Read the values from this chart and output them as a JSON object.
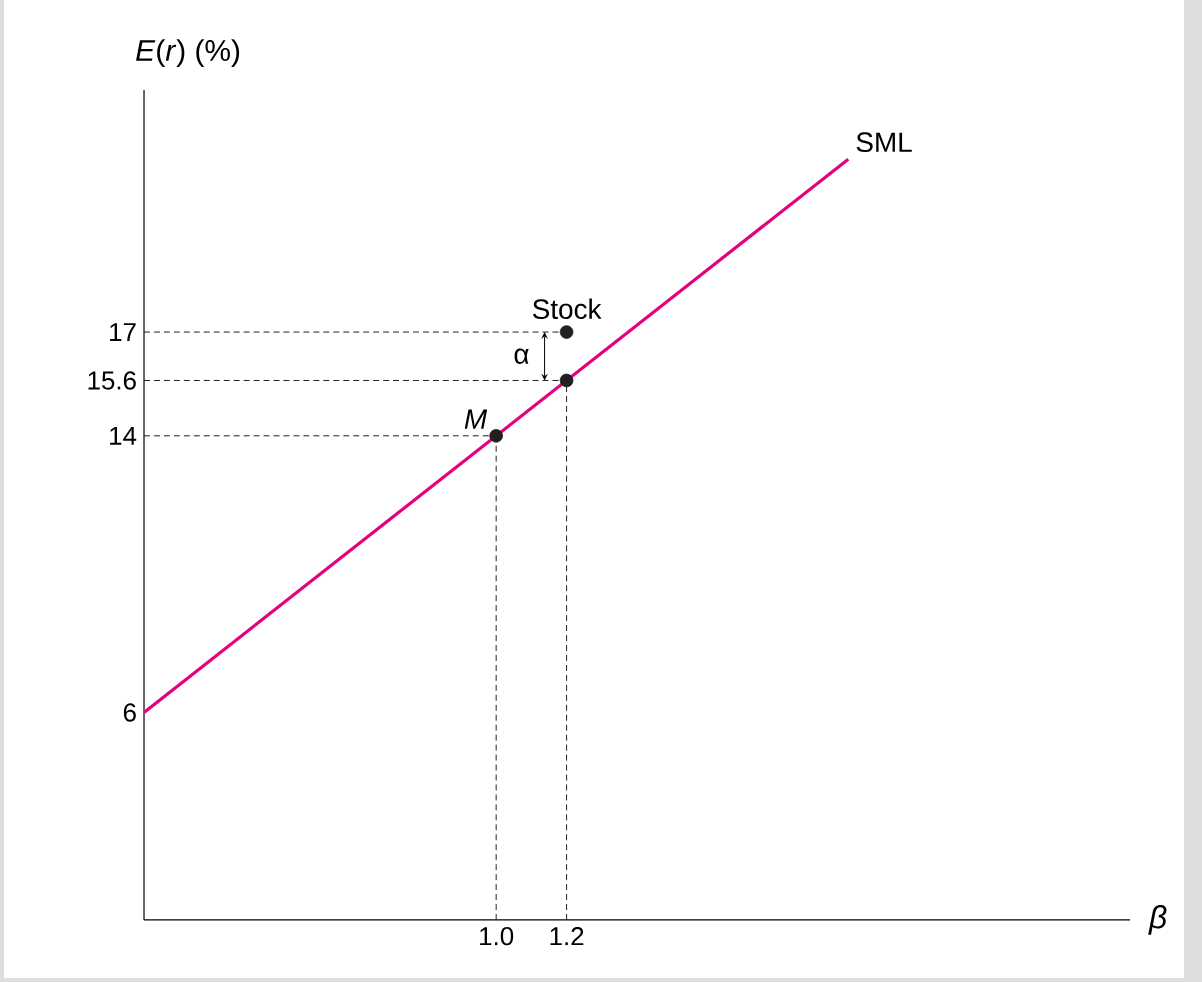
{
  "chart_data": {
    "type": "line",
    "xlabel": "β",
    "ylabel": "*E*(*r*) (%)",
    "xlim": [
      0,
      2.8
    ],
    "ylim": [
      0,
      24
    ],
    "xticks": [
      {
        "value": 1.0,
        "label": "1.0"
      },
      {
        "value": 1.2,
        "label": "1.2"
      }
    ],
    "yticks": [
      6,
      14,
      15.6,
      17
    ],
    "grid": false,
    "marker": "circle",
    "series": [
      {
        "name": "SML",
        "type": "line",
        "color": "#e5007d",
        "marker": "none",
        "x": [
          0,
          2.0
        ],
        "values": [
          6,
          22
        ]
      },
      {
        "type": "scatter",
        "color": "#231f20",
        "x": [
          1.0,
          1.2,
          1.2
        ],
        "values": [
          14,
          15.6,
          17
        ]
      },
      {
        "color": "#231f20",
        "line_style": "dashed",
        "marker": "none",
        "x": [
          0,
          1.2
        ],
        "values": [
          17,
          17
        ]
      },
      {
        "color": "#231f20",
        "line_style": "dashed",
        "marker": "none",
        "x": [
          0,
          1.2
        ],
        "values": [
          15.6,
          15.6
        ]
      },
      {
        "color": "#231f20",
        "line_style": "dashed",
        "marker": "none",
        "x": [
          0,
          1.0
        ],
        "values": [
          14,
          14
        ]
      },
      {
        "color": "#231f20",
        "line_style": "dashed",
        "marker": "none",
        "x": [
          1.0,
          1.0
        ],
        "values": [
          0,
          14
        ]
      },
      {
        "color": "#231f20",
        "line_style": "dashed",
        "marker": "none",
        "x": [
          1.2,
          1.2
        ],
        "values": [
          0,
          15.6
        ]
      }
    ],
    "annotations": [
      {
        "text": "*M*",
        "x": 1.0,
        "y": 14
      },
      {
        "text": "Stock",
        "x": 1.2,
        "y": 17
      },
      "α"
    ]
  }
}
